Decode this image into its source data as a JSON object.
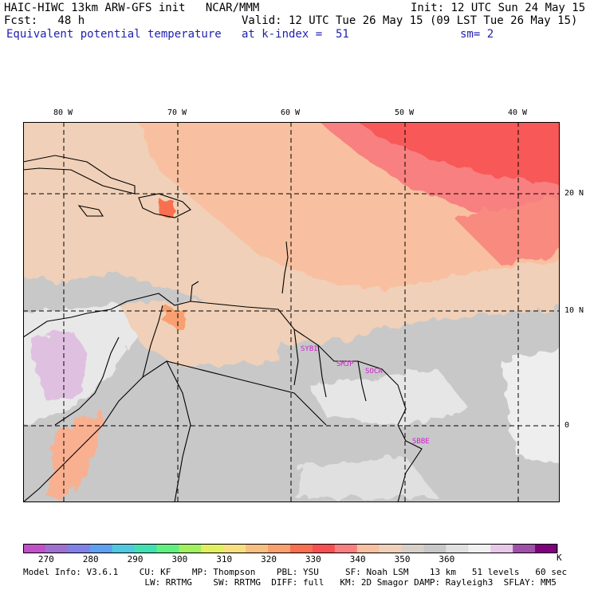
{
  "header": {
    "line1_left": "HAIC-HIWC 13km ARW-GFS init   NCAR/MMM",
    "line1_right": "Init: 12 UTC Sun 24 May 15",
    "line2_left": "Fcst:   48 h",
    "line2_right": "Valid: 12 UTC Tue 26 May 15 (09 LST Tue 26 May 15)",
    "line3_left": "Equivalent potential temperature",
    "line3_mid": "at k-index =  51",
    "line3_right": "sm= 2"
  },
  "map": {
    "lon_labels": [
      "80 W",
      "70 W",
      "60 W",
      "50 W",
      "40 W"
    ],
    "lat_labels": [
      "20 N",
      "10 N",
      "0"
    ],
    "stations": [
      "SYBI",
      "SMJP",
      "SOCA",
      "SBBE"
    ]
  },
  "colorbar": {
    "unit": "K",
    "tick_labels": [
      "270",
      "280",
      "290",
      "300",
      "310",
      "320",
      "330",
      "340",
      "350",
      "360"
    ],
    "colors": [
      "#c050c8",
      "#a070d0",
      "#8080e8",
      "#60a0f0",
      "#50c8e0",
      "#40e0b0",
      "#60f080",
      "#a0f060",
      "#e0f060",
      "#f8e080",
      "#f8c080",
      "#f8a070",
      "#f87050",
      "#f85050",
      "#f88080",
      "#f8c0a0",
      "#f0d0b8",
      "#d8d0c8",
      "#c8c8c8",
      "#e0e0e0",
      "#f0f0f0",
      "#e8c8e8",
      "#a050a8",
      "#800080"
    ]
  },
  "footer": {
    "line1": "Model Info: V3.6.1    CU: KF    MP: Thompson    PBL: YSU     SF: Noah LSM    13 km   51 levels   60 sec",
    "line2": "                       LW: RRTMG    SW: RRTMG  DIFF: full   KM: 2D Smagor DAMP: Rayleigh3  SFLAY: MM5"
  }
}
